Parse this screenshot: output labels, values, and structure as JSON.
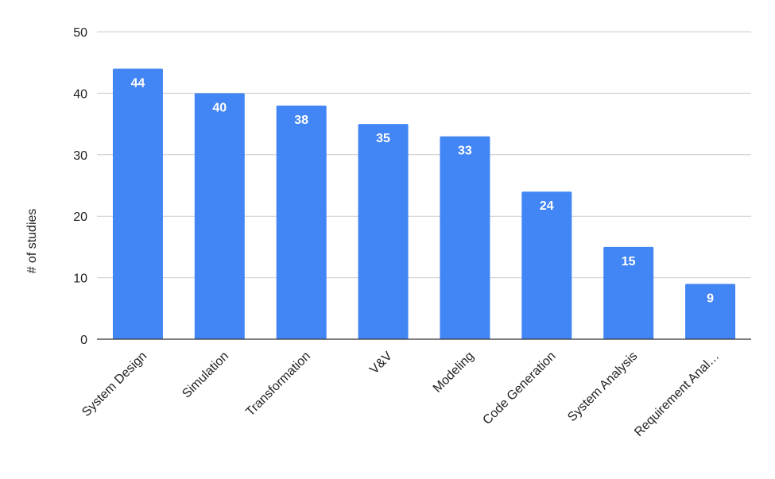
{
  "chart_data": {
    "type": "bar",
    "title": "",
    "xlabel": "",
    "ylabel": "# of studies",
    "categories": [
      "System Design",
      "Simulation",
      "Transformation",
      "V&V",
      "Modeling",
      "Code Generation",
      "System Analysis",
      "Requirement Anal…"
    ],
    "values": [
      44,
      40,
      38,
      35,
      33,
      24,
      15,
      9
    ],
    "ylim": [
      0,
      50
    ],
    "yticks": [
      0,
      10,
      20,
      30,
      40,
      50
    ],
    "grid": true,
    "legend": "none",
    "bar_color": "#4285F4",
    "data_labels": true
  }
}
